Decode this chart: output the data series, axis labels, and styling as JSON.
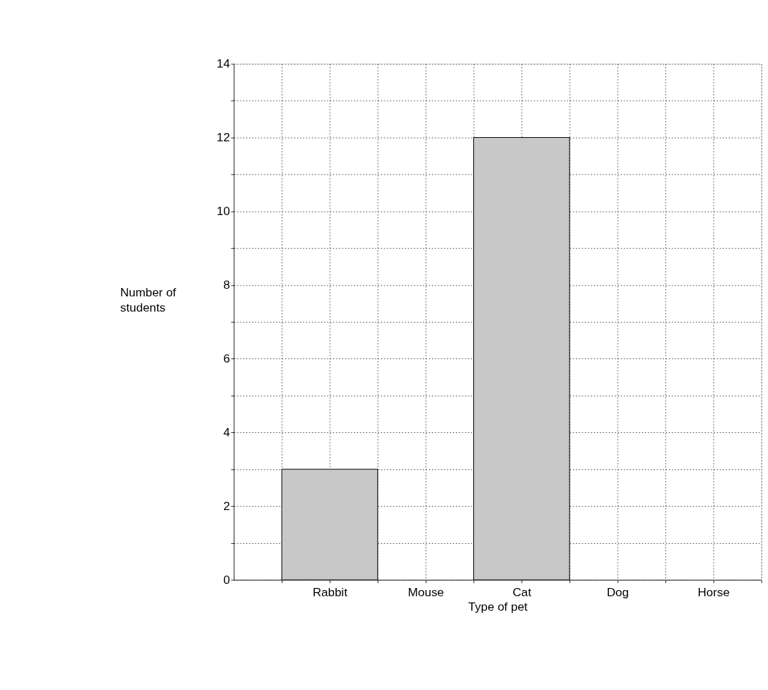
{
  "chart_data": {
    "type": "bar",
    "categories": [
      "Rabbit",
      "Mouse",
      "Cat",
      "Dog",
      "Horse"
    ],
    "values": [
      3,
      null,
      12,
      null,
      null
    ],
    "color": "#c8c8c8",
    "xlabel": "Type of pet",
    "ylabel": "Number of students",
    "ylim": [
      0,
      14
    ],
    "yticks": [
      0,
      {
        "value": 1,
        "label": null
      },
      2,
      {
        "value": 3,
        "label": null
      },
      4,
      {
        "value": 5,
        "label": null
      },
      6,
      {
        "value": 7,
        "label": null
      },
      8,
      {
        "value": 9,
        "label": null
      },
      10,
      {
        "value": 11,
        "label": null
      },
      12,
      {
        "value": 13,
        "label": null
      },
      14
    ],
    "grid": true
  }
}
